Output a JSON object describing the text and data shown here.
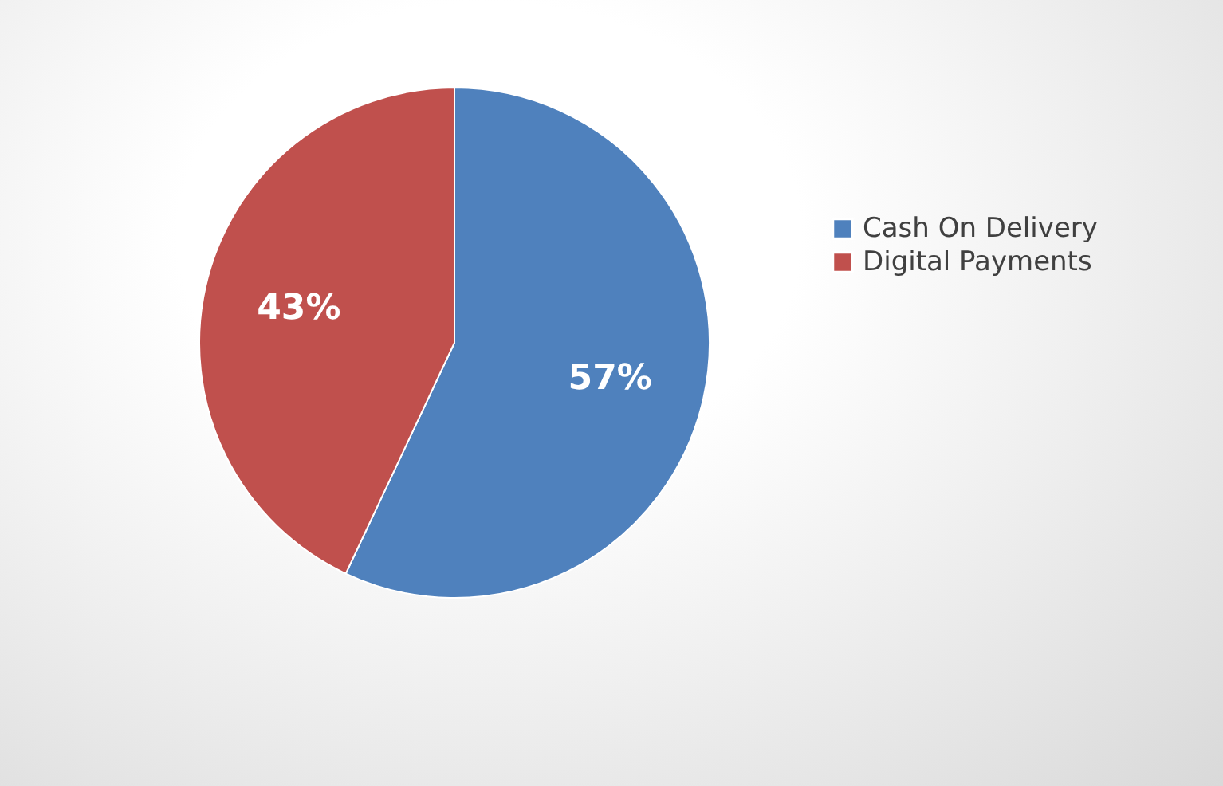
{
  "chart_data": {
    "type": "pie",
    "categories": [
      "Cash On Delivery",
      "Digital Payments"
    ],
    "values": [
      57,
      43
    ],
    "colors": [
      "#4f81bd",
      "#c0504d"
    ],
    "value_labels": [
      "57%",
      "43%"
    ],
    "legend": "right"
  }
}
